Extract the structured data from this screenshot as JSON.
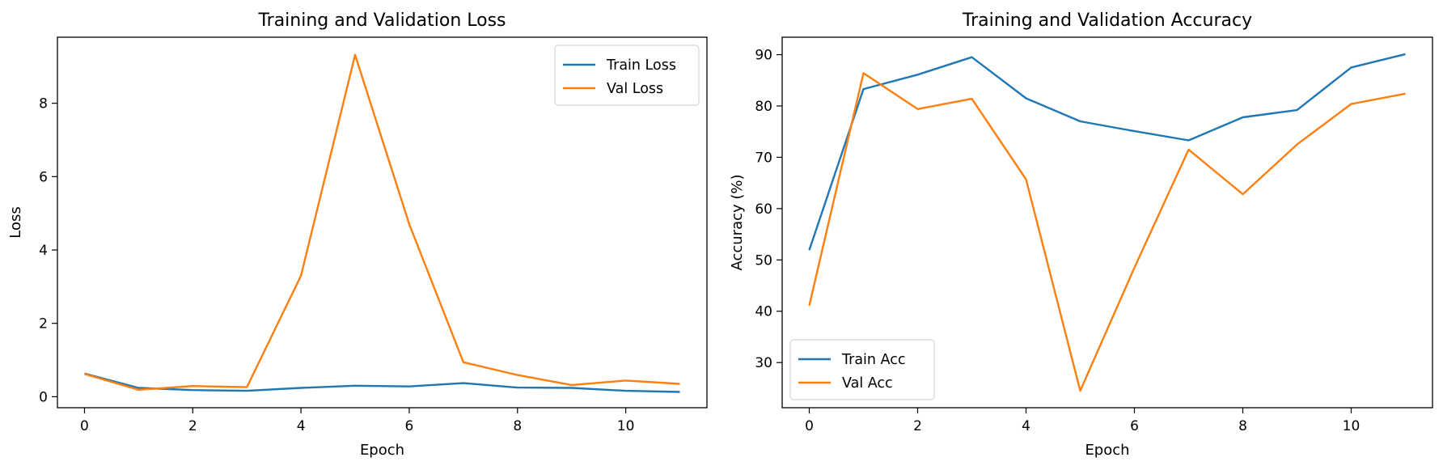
{
  "colors": {
    "train": "#1f77b4",
    "val": "#ff7f0e"
  },
  "chart_data": [
    {
      "type": "line",
      "title": "Training and Validation Loss",
      "xlabel": "Epoch",
      "ylabel": "Loss",
      "xlim": [
        -0.5,
        11.5
      ],
      "ylim": [
        -0.3,
        9.8
      ],
      "xticks": [
        0,
        2,
        4,
        6,
        8,
        10
      ],
      "yticks": [
        0,
        2,
        4,
        6,
        8
      ],
      "legend": "upper-right",
      "grid": false,
      "x": [
        0,
        1,
        2,
        3,
        4,
        5,
        6,
        7,
        8,
        9,
        10,
        11
      ],
      "series": [
        {
          "name": "Train Loss",
          "color": "#1f77b4",
          "values": [
            0.63,
            0.24,
            0.18,
            0.16,
            0.24,
            0.3,
            0.28,
            0.37,
            0.25,
            0.24,
            0.16,
            0.13
          ]
        },
        {
          "name": "Val Loss",
          "color": "#ff7f0e",
          "values": [
            0.62,
            0.19,
            0.29,
            0.26,
            3.3,
            9.32,
            4.7,
            0.94,
            0.59,
            0.32,
            0.44,
            0.35
          ]
        }
      ]
    },
    {
      "type": "line",
      "title": "Training and Validation Accuracy",
      "xlabel": "Epoch",
      "ylabel": "Accuracy (%)",
      "xlim": [
        -0.5,
        11.5
      ],
      "ylim": [
        21.2,
        93.4
      ],
      "xticks": [
        0,
        2,
        4,
        6,
        8,
        10
      ],
      "yticks": [
        30,
        40,
        50,
        60,
        70,
        80,
        90
      ],
      "legend": "lower-left",
      "grid": false,
      "x": [
        0,
        1,
        2,
        3,
        4,
        5,
        6,
        7,
        8,
        9,
        10,
        11
      ],
      "series": [
        {
          "name": "Train Acc",
          "color": "#1f77b4",
          "values": [
            51.9,
            83.3,
            86.1,
            89.5,
            81.5,
            77.0,
            75.1,
            73.3,
            77.8,
            79.2,
            87.5,
            90.1
          ]
        },
        {
          "name": "Val Acc",
          "color": "#ff7f0e",
          "values": [
            41.1,
            86.4,
            79.4,
            81.4,
            65.7,
            24.5,
            48.5,
            71.5,
            62.8,
            72.5,
            80.4,
            82.4
          ]
        }
      ]
    }
  ]
}
